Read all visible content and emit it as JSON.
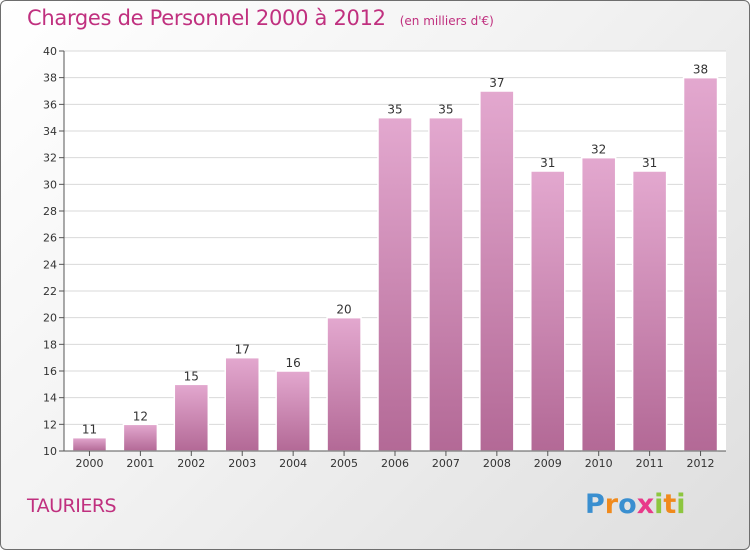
{
  "header": {
    "title": "Charges de Personnel 2000 à 2012",
    "subtitle": "(en milliers d'€)"
  },
  "footer": {
    "town": "TAURIERS",
    "logo_letters": [
      "P",
      "r",
      "o",
      "x",
      "i",
      "t",
      "i"
    ],
    "logo_colors": [
      "#3a8fd0",
      "#f08a1c",
      "#3a8fd0",
      "#e83a8a",
      "#8dc63f",
      "#f08a1c",
      "#8dc63f"
    ]
  },
  "colors": {
    "bar_light": "#e3a8cf",
    "bar_dark": "#b36996",
    "grid": "#d9d9d9"
  },
  "chart_data": {
    "type": "bar",
    "categories": [
      "2000",
      "2001",
      "2002",
      "2003",
      "2004",
      "2005",
      "2006",
      "2007",
      "2008",
      "2009",
      "2010",
      "2011",
      "2012"
    ],
    "values": [
      11,
      12,
      15,
      17,
      16,
      20,
      35,
      35,
      37,
      31,
      32,
      31,
      38
    ],
    "data_labels": [
      "11",
      "12",
      "15",
      "17",
      "16",
      "20",
      "35",
      "35",
      "37",
      "31",
      "32",
      "31",
      "38"
    ],
    "yticks": [
      "10",
      "12",
      "14",
      "16",
      "18",
      "20",
      "22",
      "24",
      "26",
      "28",
      "30",
      "32",
      "34",
      "36",
      "38",
      "40"
    ],
    "ylim": [
      10,
      40
    ],
    "grid": true,
    "legend": "none"
  }
}
